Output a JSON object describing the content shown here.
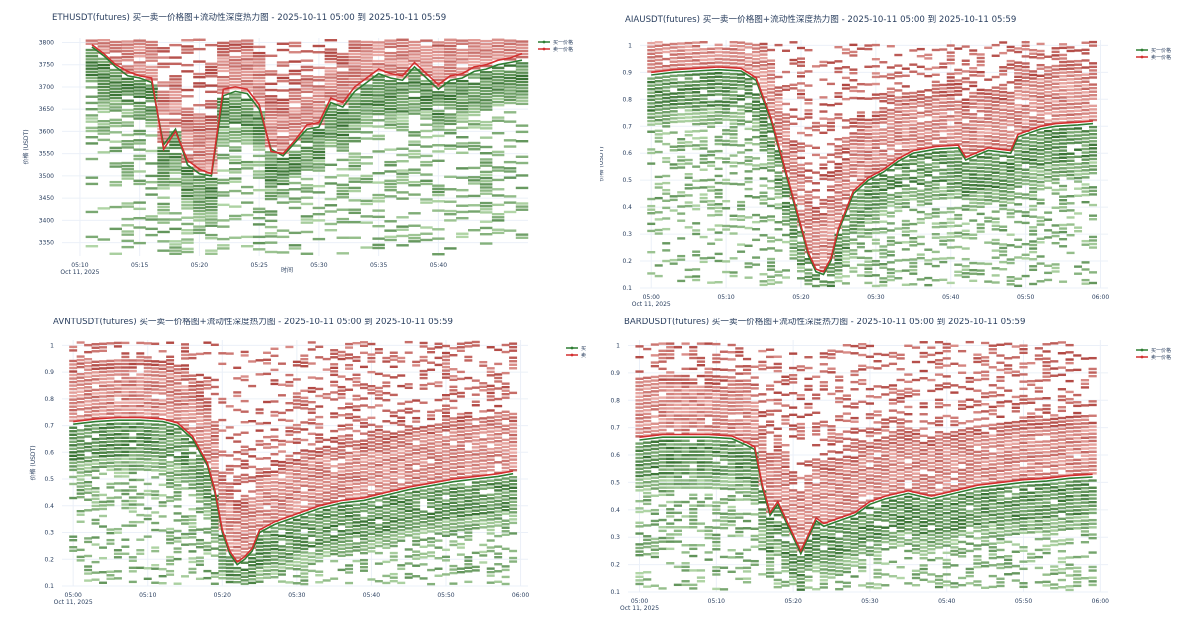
{
  "chart_data": [
    {
      "type": "heatmap",
      "symbol": "ETHUSDT",
      "title": "ETHUSDT(futures) 买一卖一价格图+流动性深度热力图 - 2025-10-11 05:00 到 2025-10-11 05:59",
      "xlabel": "时间",
      "ylabel": "价格 (USDT)",
      "xlim": [
        8.5,
        47.5
      ],
      "ylim": [
        3320,
        3810
      ],
      "yticks": [
        3350,
        3400,
        3450,
        3500,
        3550,
        3600,
        3650,
        3700,
        3750,
        3800
      ],
      "xticks": [
        {
          "v": 10,
          "label": "05:10",
          "sub": "Oct 11, 2025"
        },
        {
          "v": 15,
          "label": "05:15"
        },
        {
          "v": 20,
          "label": "05:20"
        },
        {
          "v": 25,
          "label": "05:25"
        },
        {
          "v": 30,
          "label": "05:30"
        },
        {
          "v": 35,
          "label": "05:35"
        },
        {
          "v": 40,
          "label": "05:40"
        }
      ],
      "legend": [
        "买一价格",
        "卖一价格"
      ],
      "legend_position": "top-right",
      "bid_series": [
        [
          11,
          3790
        ],
        [
          12,
          3770
        ],
        [
          13,
          3745
        ],
        [
          14,
          3725
        ],
        [
          15,
          3720
        ],
        [
          16,
          3710
        ],
        [
          17,
          3570
        ],
        [
          18,
          3605
        ],
        [
          19,
          3525
        ],
        [
          20,
          3505
        ],
        [
          21,
          3500
        ],
        [
          22,
          3680
        ],
        [
          23,
          3690
        ],
        [
          24,
          3685
        ],
        [
          25,
          3650
        ],
        [
          26,
          3560
        ],
        [
          27,
          3545
        ],
        [
          28,
          3575
        ],
        [
          29,
          3605
        ],
        [
          30,
          3610
        ],
        [
          31,
          3665
        ],
        [
          32,
          3655
        ],
        [
          33,
          3690
        ],
        [
          34,
          3710
        ],
        [
          35,
          3730
        ],
        [
          36,
          3720
        ],
        [
          37,
          3715
        ],
        [
          38,
          3745
        ],
        [
          39,
          3720
        ],
        [
          40,
          3695
        ],
        [
          41,
          3715
        ],
        [
          42,
          3720
        ],
        [
          43,
          3735
        ],
        [
          44,
          3740
        ],
        [
          45,
          3750
        ],
        [
          46,
          3755
        ],
        [
          47,
          3760
        ]
      ],
      "ask_series": [
        [
          11,
          3795
        ],
        [
          12,
          3775
        ],
        [
          13,
          3750
        ],
        [
          14,
          3735
        ],
        [
          15,
          3725
        ],
        [
          16,
          3720
        ],
        [
          17,
          3560
        ],
        [
          18,
          3600
        ],
        [
          19,
          3535
        ],
        [
          20,
          3515
        ],
        [
          21,
          3505
        ],
        [
          22,
          3695
        ],
        [
          23,
          3700
        ],
        [
          24,
          3695
        ],
        [
          25,
          3660
        ],
        [
          26,
          3555
        ],
        [
          27,
          3550
        ],
        [
          28,
          3580
        ],
        [
          29,
          3615
        ],
        [
          30,
          3620
        ],
        [
          31,
          3675
        ],
        [
          32,
          3665
        ],
        [
          33,
          3700
        ],
        [
          34,
          3720
        ],
        [
          35,
          3740
        ],
        [
          36,
          3730
        ],
        [
          37,
          3725
        ],
        [
          38,
          3755
        ],
        [
          39,
          3730
        ],
        [
          40,
          3705
        ],
        [
          41,
          3725
        ],
        [
          42,
          3730
        ],
        [
          43,
          3745
        ],
        [
          44,
          3750
        ],
        [
          45,
          3760
        ],
        [
          46,
          3765
        ],
        [
          47,
          3775
        ]
      ]
    },
    {
      "type": "heatmap",
      "symbol": "AIAUSDT",
      "title": "AIAUSDT(futures) 买一卖一价格图+流动性深度热力图 - 2025-10-11 05:00 到 2025-10-11 05:59",
      "xlabel": "",
      "ylabel": "价格 (USDT)",
      "xlim": [
        -1.5,
        61
      ],
      "ylim": [
        0.1,
        1.02
      ],
      "yticks": [
        0.1,
        0.2,
        0.3,
        0.4,
        0.5,
        0.6,
        0.7,
        0.8,
        0.9,
        1
      ],
      "xticks": [
        {
          "v": 0,
          "label": "05:00",
          "sub": "Oct 11, 2025"
        },
        {
          "v": 10,
          "label": "05:10"
        },
        {
          "v": 20,
          "label": "05:20"
        },
        {
          "v": 30,
          "label": "05:30"
        },
        {
          "v": 40,
          "label": "05:40"
        },
        {
          "v": 50,
          "label": "05:50"
        },
        {
          "v": 60,
          "label": "06:00"
        }
      ],
      "legend": [
        "买一价格",
        "卖一价格"
      ],
      "legend_position": "top-right",
      "bid_series": [
        [
          0,
          0.89
        ],
        [
          3,
          0.9
        ],
        [
          6,
          0.905
        ],
        [
          9,
          0.91
        ],
        [
          12,
          0.905
        ],
        [
          14,
          0.87
        ],
        [
          16,
          0.72
        ],
        [
          18,
          0.52
        ],
        [
          20,
          0.32
        ],
        [
          21,
          0.22
        ],
        [
          22,
          0.16
        ],
        [
          23,
          0.15
        ],
        [
          24,
          0.2
        ],
        [
          25,
          0.31
        ],
        [
          27,
          0.45
        ],
        [
          29,
          0.5
        ],
        [
          31,
          0.53
        ],
        [
          33,
          0.57
        ],
        [
          35,
          0.6
        ],
        [
          38,
          0.615
        ],
        [
          41,
          0.62
        ],
        [
          42,
          0.575
        ],
        [
          45,
          0.61
        ],
        [
          48,
          0.6
        ],
        [
          49,
          0.66
        ],
        [
          52,
          0.69
        ],
        [
          54,
          0.7
        ],
        [
          57,
          0.705
        ],
        [
          59,
          0.71
        ]
      ],
      "ask_series": [
        [
          0,
          0.9
        ],
        [
          3,
          0.91
        ],
        [
          6,
          0.915
        ],
        [
          9,
          0.92
        ],
        [
          12,
          0.915
        ],
        [
          14,
          0.88
        ],
        [
          16,
          0.73
        ],
        [
          18,
          0.53
        ],
        [
          20,
          0.33
        ],
        [
          21,
          0.23
        ],
        [
          22,
          0.17
        ],
        [
          23,
          0.16
        ],
        [
          24,
          0.21
        ],
        [
          25,
          0.32
        ],
        [
          27,
          0.46
        ],
        [
          29,
          0.51
        ],
        [
          31,
          0.54
        ],
        [
          33,
          0.58
        ],
        [
          35,
          0.61
        ],
        [
          38,
          0.625
        ],
        [
          41,
          0.63
        ],
        [
          42,
          0.585
        ],
        [
          45,
          0.62
        ],
        [
          48,
          0.61
        ],
        [
          49,
          0.67
        ],
        [
          52,
          0.7
        ],
        [
          54,
          0.71
        ],
        [
          57,
          0.715
        ],
        [
          59,
          0.72
        ]
      ]
    },
    {
      "type": "heatmap",
      "symbol": "AVNTUSDT",
      "title": "AVNTUSDT(futures) 买一卖一价格图+流动性深度热力图 - 2025-10-11 05:00 到 2025-10-11 05:59",
      "xlabel": "",
      "ylabel": "价格 (USDT)",
      "xlim": [
        -1.5,
        61
      ],
      "ylim": [
        0.1,
        1.02
      ],
      "yticks": [
        0.1,
        0.2,
        0.3,
        0.4,
        0.5,
        0.6,
        0.7,
        0.8,
        0.9,
        1
      ],
      "xticks": [
        {
          "v": 0,
          "label": "05:00",
          "sub": "Oct 11, 2025"
        },
        {
          "v": 10,
          "label": "05:10"
        },
        {
          "v": 20,
          "label": "05:20"
        },
        {
          "v": 30,
          "label": "05:30"
        },
        {
          "v": 40,
          "label": "05:40"
        },
        {
          "v": 50,
          "label": "05:50"
        },
        {
          "v": 60,
          "label": "06:00"
        }
      ],
      "legend": [
        "买",
        "卖"
      ],
      "legend_position": "top-right",
      "bid_series": [
        [
          0,
          0.705
        ],
        [
          3,
          0.715
        ],
        [
          6,
          0.72
        ],
        [
          9,
          0.72
        ],
        [
          12,
          0.715
        ],
        [
          14,
          0.7
        ],
        [
          16,
          0.65
        ],
        [
          18,
          0.55
        ],
        [
          19,
          0.45
        ],
        [
          20,
          0.3
        ],
        [
          21,
          0.22
        ],
        [
          22,
          0.18
        ],
        [
          23,
          0.2
        ],
        [
          24,
          0.23
        ],
        [
          25,
          0.3
        ],
        [
          27,
          0.33
        ],
        [
          30,
          0.36
        ],
        [
          33,
          0.39
        ],
        [
          36,
          0.41
        ],
        [
          39,
          0.42
        ],
        [
          42,
          0.44
        ],
        [
          45,
          0.46
        ],
        [
          48,
          0.475
        ],
        [
          51,
          0.49
        ],
        [
          54,
          0.5
        ],
        [
          57,
          0.51
        ],
        [
          59,
          0.52
        ]
      ],
      "ask_series": [
        [
          0,
          0.715
        ],
        [
          3,
          0.725
        ],
        [
          6,
          0.73
        ],
        [
          9,
          0.73
        ],
        [
          12,
          0.725
        ],
        [
          14,
          0.71
        ],
        [
          16,
          0.66
        ],
        [
          18,
          0.56
        ],
        [
          19,
          0.46
        ],
        [
          20,
          0.31
        ],
        [
          21,
          0.23
        ],
        [
          22,
          0.19
        ],
        [
          23,
          0.21
        ],
        [
          24,
          0.24
        ],
        [
          25,
          0.31
        ],
        [
          27,
          0.34
        ],
        [
          30,
          0.37
        ],
        [
          33,
          0.4
        ],
        [
          36,
          0.42
        ],
        [
          39,
          0.43
        ],
        [
          42,
          0.45
        ],
        [
          45,
          0.47
        ],
        [
          48,
          0.485
        ],
        [
          51,
          0.5
        ],
        [
          54,
          0.51
        ],
        [
          57,
          0.52
        ],
        [
          59,
          0.53
        ]
      ]
    },
    {
      "type": "heatmap",
      "symbol": "BARDUSDT",
      "title": "BARDUSDT(futures) 买一卖一价格图+流动性深度热力图 - 2025-10-11 05:00 到 2025-10-11 05:59",
      "xlabel": "",
      "ylabel": "价格 (USDT)",
      "xlim": [
        -1.5,
        61
      ],
      "ylim": [
        0.1,
        1.02
      ],
      "yticks": [
        0.1,
        0.2,
        0.3,
        0.4,
        0.5,
        0.6,
        0.7,
        0.8,
        0.9,
        1
      ],
      "xticks": [
        {
          "v": 0,
          "label": "05:00",
          "sub": "Oct 11, 2025"
        },
        {
          "v": 10,
          "label": "05:10"
        },
        {
          "v": 20,
          "label": "05:20"
        },
        {
          "v": 30,
          "label": "05:30"
        },
        {
          "v": 40,
          "label": "05:40"
        },
        {
          "v": 50,
          "label": "05:50"
        },
        {
          "v": 60,
          "label": "06:00"
        }
      ],
      "legend": [
        "买一价格",
        "卖一价格"
      ],
      "legend_position": "top-right",
      "bid_series": [
        [
          0,
          0.655
        ],
        [
          3,
          0.665
        ],
        [
          6,
          0.665
        ],
        [
          9,
          0.665
        ],
        [
          12,
          0.66
        ],
        [
          14,
          0.635
        ],
        [
          15,
          0.62
        ],
        [
          16,
          0.48
        ],
        [
          17,
          0.38
        ],
        [
          18,
          0.42
        ],
        [
          19,
          0.36
        ],
        [
          20,
          0.3
        ],
        [
          21,
          0.24
        ],
        [
          22,
          0.3
        ],
        [
          23,
          0.36
        ],
        [
          24,
          0.34
        ],
        [
          26,
          0.36
        ],
        [
          28,
          0.38
        ],
        [
          30,
          0.42
        ],
        [
          32,
          0.44
        ],
        [
          35,
          0.46
        ],
        [
          38,
          0.44
        ],
        [
          41,
          0.46
        ],
        [
          44,
          0.48
        ],
        [
          47,
          0.49
        ],
        [
          50,
          0.5
        ],
        [
          53,
          0.505
        ],
        [
          56,
          0.515
        ],
        [
          59,
          0.52
        ]
      ],
      "ask_series": [
        [
          0,
          0.665
        ],
        [
          3,
          0.675
        ],
        [
          6,
          0.675
        ],
        [
          9,
          0.675
        ],
        [
          12,
          0.67
        ],
        [
          14,
          0.645
        ],
        [
          15,
          0.63
        ],
        [
          16,
          0.49
        ],
        [
          17,
          0.39
        ],
        [
          18,
          0.43
        ],
        [
          19,
          0.37
        ],
        [
          20,
          0.31
        ],
        [
          21,
          0.25
        ],
        [
          22,
          0.31
        ],
        [
          23,
          0.37
        ],
        [
          24,
          0.35
        ],
        [
          26,
          0.37
        ],
        [
          28,
          0.39
        ],
        [
          30,
          0.43
        ],
        [
          32,
          0.45
        ],
        [
          35,
          0.47
        ],
        [
          38,
          0.45
        ],
        [
          41,
          0.47
        ],
        [
          44,
          0.49
        ],
        [
          47,
          0.5
        ],
        [
          50,
          0.51
        ],
        [
          53,
          0.515
        ],
        [
          56,
          0.525
        ],
        [
          59,
          0.53
        ]
      ]
    }
  ]
}
